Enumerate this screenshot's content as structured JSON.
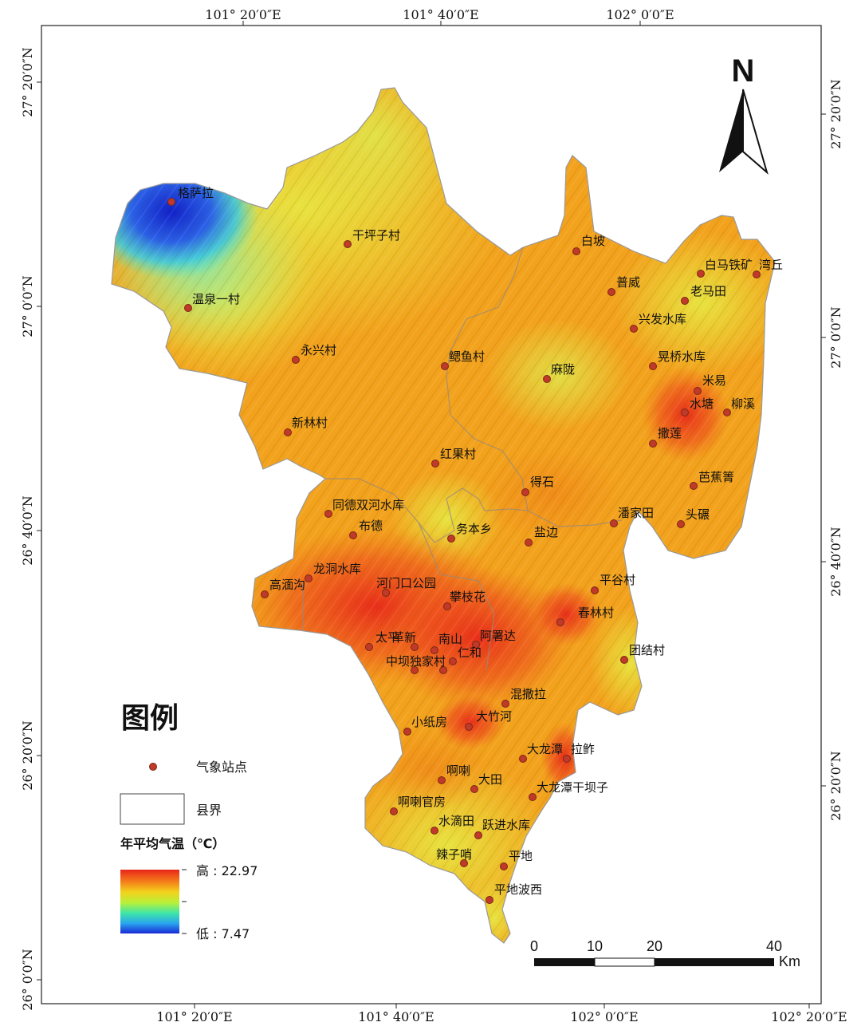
{
  "legend": {
    "title": "图例",
    "station_label": "气象站点",
    "boundary_label": "县界",
    "temperature_title": "年平均气温（℃）",
    "high_label": "高 : 22.97",
    "low_label": "低 : 7.47",
    "temp_max": 22.97,
    "temp_min": 7.47
  },
  "north_arrow": {
    "label": "N"
  },
  "scale_bar": {
    "ticks": [
      "0",
      "10",
      "20",
      "40"
    ],
    "unit": "Km"
  },
  "axes": {
    "top": [
      "101° 20′0″E",
      "101° 40′0″E",
      "102° 0′0″E"
    ],
    "bottom": [
      "101° 20′0″E",
      "101° 40′0″E",
      "102° 0′0″E",
      "102° 20′0″E"
    ],
    "left": [
      "27° 20′0″N",
      "27° 0′0″N",
      "26° 40′0″N",
      "26° 20′0″N",
      "26° 0′0″N"
    ],
    "right": [
      "27° 20′0″N",
      "27° 0′0″N",
      "26° 40′0″N",
      "26° 20′0″N"
    ]
  },
  "stations": [
    "格萨拉",
    "干坪子村",
    "温泉一村",
    "永兴村",
    "鳃鱼村",
    "新林村",
    "红果村",
    "白坡",
    "普威",
    "白马铁矿",
    "湾丘",
    "老马田",
    "兴发水库",
    "晃桥水库",
    "麻陇",
    "米易",
    "水塘",
    "柳溪",
    "撒莲",
    "得石",
    "芭蕉箐",
    "潘家田",
    "头碾",
    "同德双河水库",
    "布德",
    "务本乡",
    "盐边",
    "龙洞水库",
    "高湎沟",
    "河门口公园",
    "攀枝花",
    "平谷村",
    "春林村",
    "太平",
    "革新",
    "南山",
    "阿署达",
    "仁和",
    "中坝",
    "独家村",
    "团结村",
    "混撒拉",
    "小纸房",
    "大竹河",
    "大龙潭",
    "拉鲊",
    "啊喇",
    "大田",
    "大龙潭干坝子",
    "啊喇官房",
    "水滴田",
    "跃进水库",
    "平地",
    "辣子哨",
    "平地波西"
  ]
}
